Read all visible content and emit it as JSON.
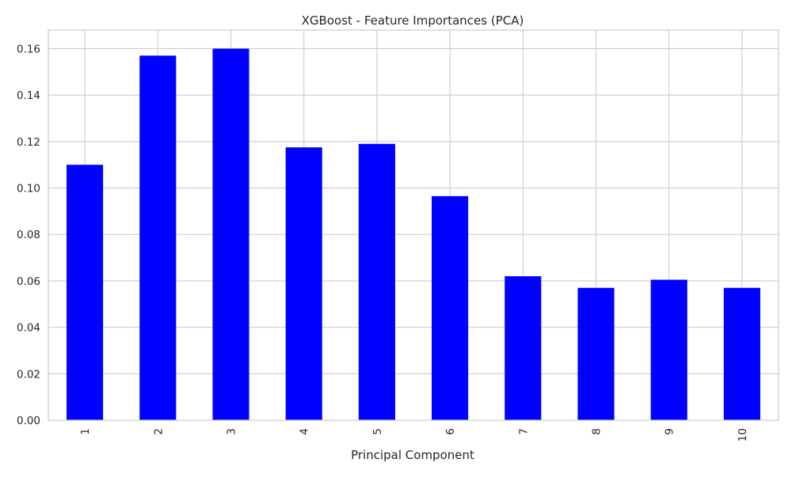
{
  "chart_data": {
    "type": "bar",
    "title": "XGBoost - Feature Importances (PCA)",
    "xlabel": "Principal Component",
    "ylabel": "",
    "categories": [
      "1",
      "2",
      "3",
      "4",
      "5",
      "6",
      "7",
      "8",
      "9",
      "10"
    ],
    "values": [
      0.11,
      0.157,
      0.16,
      0.1175,
      0.119,
      0.0965,
      0.062,
      0.057,
      0.0605,
      0.057
    ],
    "ylim": [
      0,
      0.168
    ],
    "yticks": [
      "0.00",
      "0.02",
      "0.04",
      "0.06",
      "0.08",
      "0.10",
      "0.12",
      "0.14",
      "0.16"
    ],
    "grid": true,
    "legend": "none",
    "colors": {
      "bar": "#0000ff",
      "grid": "#cccccc",
      "axes": "#cccccc",
      "text": "#262626",
      "background": "#ffffff"
    }
  }
}
